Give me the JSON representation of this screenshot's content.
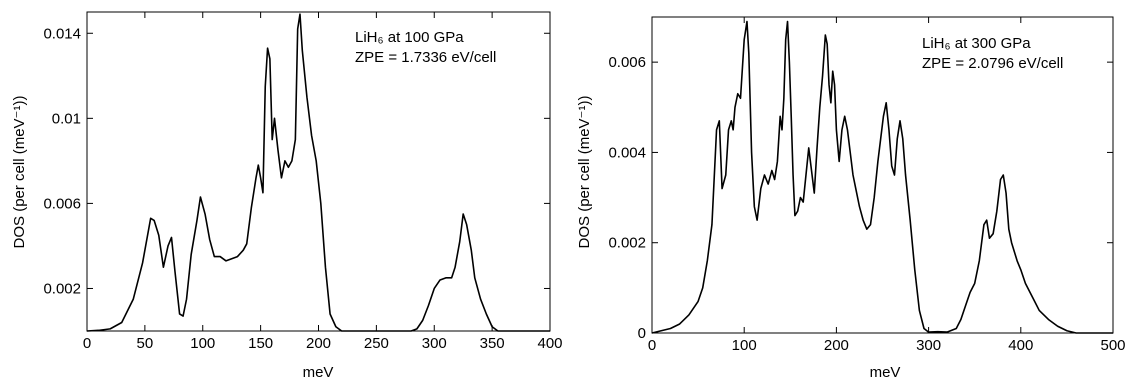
{
  "chart_data": [
    {
      "type": "line",
      "title": "",
      "xlabel": "meV",
      "ylabel": "DOS (per cell (meV⁻¹))",
      "xlim": [
        0,
        400
      ],
      "ylim": [
        0,
        0.015
      ],
      "xticks": [
        0,
        50,
        100,
        150,
        200,
        250,
        300,
        350,
        400
      ],
      "xtick_labels": [
        "0",
        "50",
        "100",
        "150",
        "200",
        "250",
        "300",
        "350",
        "400"
      ],
      "yticks": [
        0.002,
        0.006,
        0.01,
        0.014
      ],
      "ytick_labels": [
        "0.002",
        "0.006",
        "0.01",
        "0.014"
      ],
      "grid": false,
      "annotation_line1": "LiH₆ at 100 GPa",
      "annotation_line2": "ZPE = 1.7336 eV/cell",
      "series": [
        {
          "x": [
            0,
            10,
            20,
            30,
            40,
            48,
            55,
            58,
            62,
            66,
            70,
            73,
            76,
            80,
            83,
            86,
            90,
            95,
            98,
            102,
            106,
            110,
            115,
            120,
            125,
            130,
            135,
            138,
            142,
            146,
            148,
            150,
            152,
            154,
            156,
            158,
            160,
            162,
            165,
            168,
            171,
            174,
            177,
            180,
            182,
            184,
            186,
            190,
            194,
            198,
            202,
            206,
            210,
            215,
            220,
            225,
            230,
            240,
            250,
            260,
            270,
            280,
            285,
            290,
            295,
            300,
            305,
            310,
            315,
            318,
            322,
            325,
            328,
            332,
            335,
            340,
            345,
            350,
            355,
            360,
            370,
            380,
            390,
            400
          ],
          "y": [
            0,
            3e-05,
            0.0001,
            0.0004,
            0.0015,
            0.0032,
            0.0053,
            0.0052,
            0.0045,
            0.003,
            0.004,
            0.0044,
            0.0028,
            0.0008,
            0.0007,
            0.0015,
            0.0036,
            0.0052,
            0.0063,
            0.0055,
            0.0043,
            0.0035,
            0.0035,
            0.0033,
            0.0034,
            0.0035,
            0.0038,
            0.0041,
            0.0058,
            0.0072,
            0.0078,
            0.0072,
            0.0065,
            0.0115,
            0.0133,
            0.0128,
            0.009,
            0.01,
            0.0085,
            0.0072,
            0.008,
            0.0077,
            0.008,
            0.009,
            0.0142,
            0.0149,
            0.0132,
            0.011,
            0.0092,
            0.008,
            0.006,
            0.003,
            0.0008,
            0.0002,
            0,
            0,
            0,
            0,
            0,
            0,
            0,
            0,
            0.0001,
            0.0005,
            0.0012,
            0.002,
            0.0024,
            0.0025,
            0.0025,
            0.003,
            0.0042,
            0.0055,
            0.005,
            0.0038,
            0.0025,
            0.0015,
            0.0008,
            0.0002,
            0,
            0,
            0,
            0,
            0,
            0
          ]
        }
      ]
    },
    {
      "type": "line",
      "title": "",
      "xlabel": "meV",
      "ylabel": "DOS (per cell (meV⁻¹))",
      "xlim": [
        0,
        500
      ],
      "ylim": [
        0,
        0.007
      ],
      "xticks": [
        0,
        100,
        200,
        300,
        400,
        500
      ],
      "xtick_labels": [
        "0",
        "100",
        "200",
        "300",
        "400",
        "500"
      ],
      "yticks": [
        0,
        0.002,
        0.004,
        0.006
      ],
      "ytick_labels": [
        "0",
        "0.002",
        "0.004",
        "0.006"
      ],
      "grid": false,
      "annotation_line1": "LiH₆ at 300 GPa",
      "annotation_line2": "ZPE = 2.0796 eV/cell",
      "series": [
        {
          "x": [
            0,
            10,
            20,
            30,
            40,
            50,
            55,
            60,
            65,
            70,
            73,
            76,
            80,
            83,
            86,
            88,
            90,
            93,
            96,
            100,
            103,
            105,
            108,
            111,
            114,
            118,
            122,
            126,
            130,
            133,
            136,
            139,
            141,
            143,
            145,
            147,
            149,
            151,
            153,
            155,
            158,
            161,
            164,
            167,
            170,
            173,
            176,
            179,
            182,
            185,
            188,
            190,
            192,
            194,
            196,
            198,
            200,
            203,
            206,
            209,
            212,
            215,
            218,
            221,
            225,
            229,
            233,
            237,
            241,
            245,
            248,
            251,
            254,
            257,
            260,
            263,
            266,
            269,
            272,
            275,
            280,
            285,
            290,
            295,
            300,
            310,
            320,
            330,
            335,
            340,
            345,
            350,
            355,
            360,
            363,
            366,
            370,
            374,
            378,
            381,
            384,
            387,
            390,
            393,
            396,
            400,
            405,
            410,
            415,
            420,
            425,
            430,
            440,
            450,
            460,
            480,
            500
          ],
          "y": [
            0,
            5e-05,
            0.0001,
            0.0002,
            0.0004,
            0.0007,
            0.001,
            0.0016,
            0.0024,
            0.0045,
            0.0047,
            0.0032,
            0.0035,
            0.0045,
            0.0047,
            0.0045,
            0.005,
            0.0053,
            0.0052,
            0.0065,
            0.0069,
            0.0062,
            0.004,
            0.0028,
            0.0025,
            0.0032,
            0.0035,
            0.0033,
            0.0036,
            0.0034,
            0.0038,
            0.0048,
            0.0045,
            0.0052,
            0.0065,
            0.0069,
            0.006,
            0.0048,
            0.0035,
            0.0026,
            0.0027,
            0.003,
            0.0029,
            0.0035,
            0.0041,
            0.0036,
            0.0031,
            0.0041,
            0.005,
            0.0057,
            0.0066,
            0.0064,
            0.0055,
            0.0051,
            0.0058,
            0.0055,
            0.0045,
            0.0038,
            0.0045,
            0.0048,
            0.0045,
            0.004,
            0.0035,
            0.0032,
            0.0028,
            0.0025,
            0.0023,
            0.0024,
            0.003,
            0.0038,
            0.0043,
            0.0048,
            0.0051,
            0.0045,
            0.0037,
            0.0035,
            0.0043,
            0.0047,
            0.0043,
            0.0035,
            0.0025,
            0.0014,
            0.0005,
            0.0001,
            2e-05,
            3e-05,
            2e-05,
            0.0001,
            0.0003,
            0.0006,
            0.0009,
            0.0011,
            0.0016,
            0.0024,
            0.0025,
            0.0021,
            0.0022,
            0.0027,
            0.0034,
            0.0035,
            0.0031,
            0.0023,
            0.002,
            0.0018,
            0.0016,
            0.0014,
            0.0011,
            0.0009,
            0.0007,
            0.0005,
            0.0004,
            0.0003,
            0.00015,
            5e-05,
            0,
            0,
            0
          ]
        }
      ]
    }
  ]
}
